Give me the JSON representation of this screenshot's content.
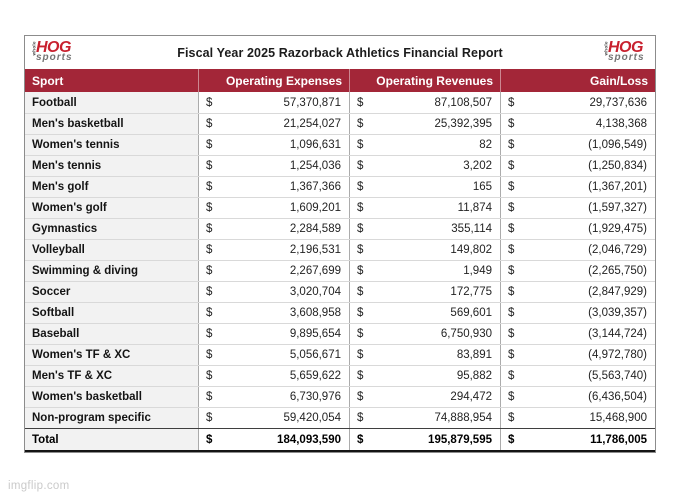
{
  "page": {
    "watermark": "imgflip.com"
  },
  "logo": {
    "vertical_text": "whole",
    "main": "HOG",
    "sub": "sports"
  },
  "colors": {
    "header_bg": "#A32638",
    "logo_red": "#C8202E",
    "row_shade": "#F2F2F2",
    "grid_line": "#ABABAB",
    "row_divider": "#D9D9D9",
    "text": "#1F1F1F",
    "watermark": "#CACACA"
  },
  "chart_data": {
    "type": "table",
    "title": "Fiscal Year 2025 Razorback Athletics Financial Report",
    "columns": [
      "Sport",
      "Operating Expenses",
      "Operating Revenues",
      "Gain/Loss"
    ],
    "currency": "$",
    "rows": [
      {
        "sport": "Football",
        "expenses": "57,370,871",
        "revenues": "87,108,507",
        "gain_loss": "29,737,636"
      },
      {
        "sport": "Men's basketball",
        "expenses": "21,254,027",
        "revenues": "25,392,395",
        "gain_loss": "4,138,368"
      },
      {
        "sport": "Women's tennis",
        "expenses": "1,096,631",
        "revenues": "82",
        "gain_loss": "(1,096,549)"
      },
      {
        "sport": "Men's tennis",
        "expenses": "1,254,036",
        "revenues": "3,202",
        "gain_loss": "(1,250,834)"
      },
      {
        "sport": "Men's golf",
        "expenses": "1,367,366",
        "revenues": "165",
        "gain_loss": "(1,367,201)"
      },
      {
        "sport": "Women's golf",
        "expenses": "1,609,201",
        "revenues": "11,874",
        "gain_loss": "(1,597,327)"
      },
      {
        "sport": "Gymnastics",
        "expenses": "2,284,589",
        "revenues": "355,114",
        "gain_loss": "(1,929,475)"
      },
      {
        "sport": "Volleyball",
        "expenses": "2,196,531",
        "revenues": "149,802",
        "gain_loss": "(2,046,729)"
      },
      {
        "sport": "Swimming & diving",
        "expenses": "2,267,699",
        "revenues": "1,949",
        "gain_loss": "(2,265,750)"
      },
      {
        "sport": "Soccer",
        "expenses": "3,020,704",
        "revenues": "172,775",
        "gain_loss": "(2,847,929)"
      },
      {
        "sport": "Softball",
        "expenses": "3,608,958",
        "revenues": "569,601",
        "gain_loss": "(3,039,357)"
      },
      {
        "sport": "Baseball",
        "expenses": "9,895,654",
        "revenues": "6,750,930",
        "gain_loss": "(3,144,724)"
      },
      {
        "sport": "Women's TF & XC",
        "expenses": "5,056,671",
        "revenues": "83,891",
        "gain_loss": "(4,972,780)"
      },
      {
        "sport": "Men's TF & XC",
        "expenses": "5,659,622",
        "revenues": "95,882",
        "gain_loss": "(5,563,740)"
      },
      {
        "sport": "Women's basketball",
        "expenses": "6,730,976",
        "revenues": "294,472",
        "gain_loss": "(6,436,504)"
      },
      {
        "sport": "Non-program specific",
        "expenses": "59,420,054",
        "revenues": "74,888,954",
        "gain_loss": "15,468,900"
      }
    ],
    "total": {
      "sport": "Total",
      "expenses": "184,093,590",
      "revenues": "195,879,595",
      "gain_loss": "11,786,005"
    }
  }
}
